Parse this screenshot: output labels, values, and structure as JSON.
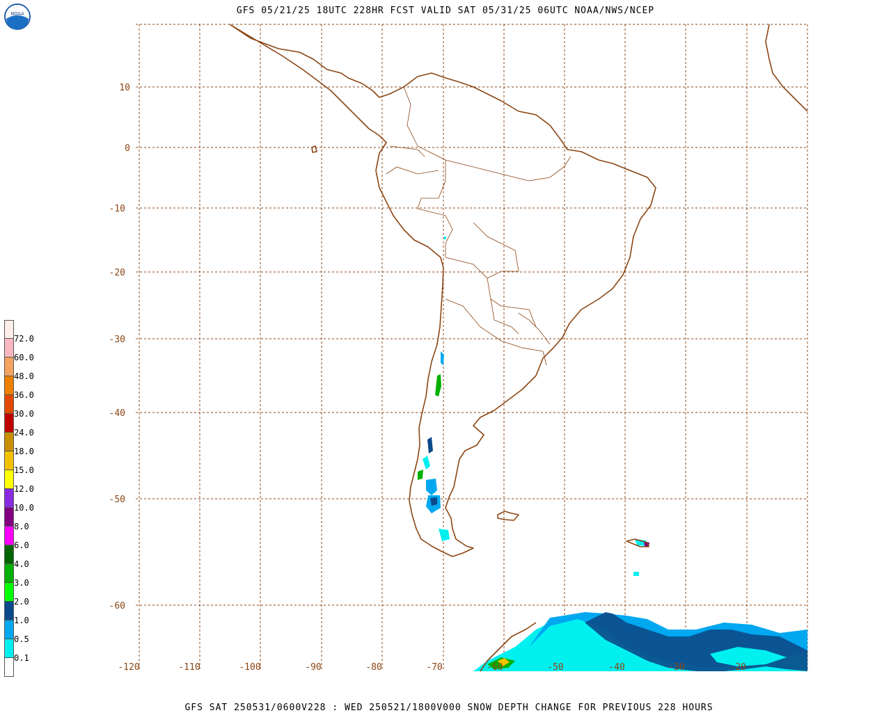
{
  "header": {
    "title": "GFS 05/21/25 18UTC 228HR FCST VALID SAT 05/31/25 06UTC NOAA/NWS/NCEP",
    "logo_text": "NOAA"
  },
  "footer": {
    "text": "GFS SAT 250531/0600V228 : WED 250521/1800V000 SNOW DEPTH CHANGE FOR PREVIOUS 228 HOURS"
  },
  "map": {
    "projection": "lat-lon",
    "lon_range": [
      -120,
      -10
    ],
    "lat_range": [
      -64,
      20
    ],
    "land_outline_color": "#8b4513",
    "grid_color": "#8b4513",
    "lat_labels": [
      "10",
      "0",
      "-10",
      "-20",
      "-30",
      "-40",
      "-50",
      "-60"
    ],
    "lon_labels": [
      "-120",
      "-110",
      "-100",
      "-90",
      "-80",
      "-70",
      "-60",
      "-50",
      "-40",
      "-30",
      "-20"
    ]
  },
  "legend": {
    "labels": [
      "72.0",
      "60.0",
      "48.0",
      "36.0",
      "30.0",
      "24.0",
      "18.0",
      "15.0",
      "12.0",
      "10.0",
      "8.0",
      "6.0",
      "4.0",
      "3.0",
      "2.0",
      "1.0",
      "0.5",
      "0.1"
    ],
    "colors": [
      "#fdeee8",
      "#f9b8c0",
      "#f4a460",
      "#f08000",
      "#e24a00",
      "#c00000",
      "#c89000",
      "#f2c200",
      "#ffff00",
      "#8a2be2",
      "#800080",
      "#ff00ff",
      "#006400",
      "#00b000",
      "#00ff00",
      "#0b4a8a",
      "#00a8f0",
      "#00f0f0",
      "#ffffff"
    ]
  }
}
